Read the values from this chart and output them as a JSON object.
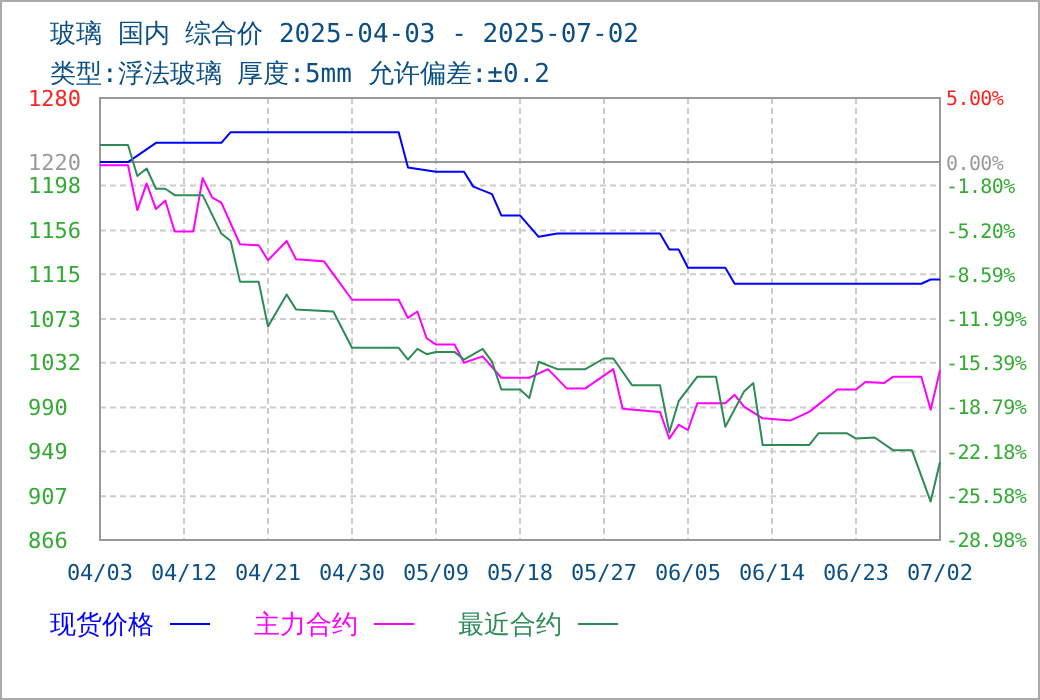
{
  "chart_data": {
    "type": "line",
    "title": "玻璃 国内 综合价 2025-04-03 - 2025-07-02",
    "subtitle": "类型:浮法玻璃 厚度:5mm 允许偏差:±0.2",
    "xlim": [
      "2025-04-03",
      "2025-07-02"
    ],
    "xticks": [
      {
        "value": "2025-04-03",
        "label": "04/03"
      },
      {
        "value": "2025-04-12",
        "label": "04/12"
      },
      {
        "value": "2025-04-21",
        "label": "04/21"
      },
      {
        "value": "2025-04-30",
        "label": "04/30"
      },
      {
        "value": "2025-05-09",
        "label": "05/09"
      },
      {
        "value": "2025-05-18",
        "label": "05/18"
      },
      {
        "value": "2025-05-27",
        "label": "05/27"
      },
      {
        "value": "2025-06-05",
        "label": "06/05"
      },
      {
        "value": "2025-06-14",
        "label": "06/14"
      },
      {
        "value": "2025-06-23",
        "label": "06/23"
      },
      {
        "value": "2025-07-02",
        "label": "07/02"
      }
    ],
    "ylim": [
      866,
      1280
    ],
    "yticks": [
      1280,
      1220,
      1198,
      1156,
      1115,
      1073,
      1032,
      990,
      949,
      907,
      866
    ],
    "y2lim": [
      -28.98,
      5.0
    ],
    "y2ticks": [
      {
        "value": 5.0,
        "label": "5.00%"
      },
      {
        "value": 0,
        "label": "0.00%"
      },
      {
        "value": -1.8,
        "label": "-1.80%"
      },
      {
        "value": -5.2,
        "label": "-5.20%"
      },
      {
        "value": -8.59,
        "label": "-8.59%"
      },
      {
        "value": -11.99,
        "label": "-11.99%"
      },
      {
        "value": -15.39,
        "label": "-15.39%"
      },
      {
        "value": -18.79,
        "label": "-18.79%"
      },
      {
        "value": -22.18,
        "label": "-22.18%"
      },
      {
        "value": -25.58,
        "label": "-25.58%"
      },
      {
        "value": -28.98,
        "label": "-28.98%"
      }
    ],
    "ref_lines": [
      {
        "axis": "y",
        "value": 1220,
        "color": "#999999"
      }
    ],
    "grid": true,
    "legend": "bottom",
    "line_style": "solid",
    "marker": "none",
    "series": [
      {
        "name": "现货价格",
        "color": "#0000ff",
        "x": [
          "2025-04-03",
          "2025-04-06",
          "2025-04-09",
          "2025-04-16",
          "2025-04-17",
          "2025-05-05",
          "2025-05-06",
          "2025-05-09",
          "2025-05-12",
          "2025-05-13",
          "2025-05-15",
          "2025-05-16",
          "2025-05-18",
          "2025-05-20",
          "2025-05-22",
          "2025-06-02",
          "2025-06-03",
          "2025-06-04",
          "2025-06-05",
          "2025-06-09",
          "2025-06-10",
          "2025-06-30",
          "2025-07-01",
          "2025-07-02"
        ],
        "values": [
          1220,
          1220,
          1238,
          1238,
          1248,
          1248,
          1215,
          1211,
          1211,
          1197,
          1190,
          1170,
          1170,
          1150,
          1153,
          1153,
          1138,
          1138,
          1121,
          1121,
          1106,
          1106,
          1110,
          1110
        ]
      },
      {
        "name": "主力合约",
        "color": "#ff00ff",
        "x": [
          "2025-04-03",
          "2025-04-06",
          "2025-04-07",
          "2025-04-08",
          "2025-04-09",
          "2025-04-10",
          "2025-04-11",
          "2025-04-13",
          "2025-04-14",
          "2025-04-15",
          "2025-04-16",
          "2025-04-18",
          "2025-04-20",
          "2025-04-21",
          "2025-04-23",
          "2025-04-24",
          "2025-04-27",
          "2025-04-28",
          "2025-04-30",
          "2025-05-05",
          "2025-05-06",
          "2025-05-07",
          "2025-05-08",
          "2025-05-09",
          "2025-05-11",
          "2025-05-12",
          "2025-05-14",
          "2025-05-16",
          "2025-05-19",
          "2025-05-21",
          "2025-05-23",
          "2025-05-25",
          "2025-05-28",
          "2025-05-29",
          "2025-06-02",
          "2025-06-03",
          "2025-06-04",
          "2025-06-05",
          "2025-06-06",
          "2025-06-09",
          "2025-06-10",
          "2025-06-11",
          "2025-06-13",
          "2025-06-16",
          "2025-06-18",
          "2025-06-21",
          "2025-06-23",
          "2025-06-24",
          "2025-06-26",
          "2025-06-27",
          "2025-06-30",
          "2025-07-01",
          "2025-07-02"
        ],
        "values": [
          1217,
          1217,
          1175,
          1200,
          1176,
          1184,
          1155,
          1155,
          1205,
          1187,
          1182,
          1143,
          1142,
          1128,
          1146,
          1129,
          1127,
          1115,
          1091,
          1091,
          1074,
          1080,
          1055,
          1049,
          1049,
          1032,
          1038,
          1018,
          1018,
          1026,
          1008,
          1008,
          1026,
          989,
          986,
          961,
          974,
          969,
          994,
          994,
          1002,
          991,
          980,
          978,
          986,
          1007,
          1007,
          1014,
          1013,
          1019,
          1019,
          988,
          1025
        ]
      },
      {
        "name": "最近合约",
        "color": "#2e8b57",
        "x": [
          "2025-04-03",
          "2025-04-06",
          "2025-04-07",
          "2025-04-08",
          "2025-04-09",
          "2025-04-10",
          "2025-04-11",
          "2025-04-14",
          "2025-04-16",
          "2025-04-17",
          "2025-04-18",
          "2025-04-20",
          "2025-04-21",
          "2025-04-23",
          "2025-04-24",
          "2025-04-28",
          "2025-04-30",
          "2025-05-05",
          "2025-05-06",
          "2025-05-07",
          "2025-05-08",
          "2025-05-09",
          "2025-05-11",
          "2025-05-12",
          "2025-05-14",
          "2025-05-15",
          "2025-05-16",
          "2025-05-18",
          "2025-05-19",
          "2025-05-20",
          "2025-05-22",
          "2025-05-25",
          "2025-05-27",
          "2025-05-28",
          "2025-05-30",
          "2025-06-02",
          "2025-06-03",
          "2025-06-04",
          "2025-06-06",
          "2025-06-08",
          "2025-06-09",
          "2025-06-11",
          "2025-06-12",
          "2025-06-13",
          "2025-06-18",
          "2025-06-19",
          "2025-06-22",
          "2025-06-23",
          "2025-06-25",
          "2025-06-27",
          "2025-06-29",
          "2025-07-01",
          "2025-07-02"
        ],
        "values": [
          1236,
          1236,
          1207,
          1214,
          1195,
          1195,
          1189,
          1189,
          1153,
          1146,
          1108,
          1108,
          1066,
          1096,
          1082,
          1080,
          1046,
          1046,
          1035,
          1045,
          1040,
          1042,
          1042,
          1035,
          1045,
          1033,
          1007,
          1007,
          999,
          1033,
          1026,
          1026,
          1036,
          1036,
          1011,
          1011,
          967,
          996,
          1019,
          1019,
          972,
          1005,
          1013,
          955,
          955,
          966,
          966,
          961,
          962,
          950,
          950,
          902,
          939
        ]
      }
    ]
  }
}
